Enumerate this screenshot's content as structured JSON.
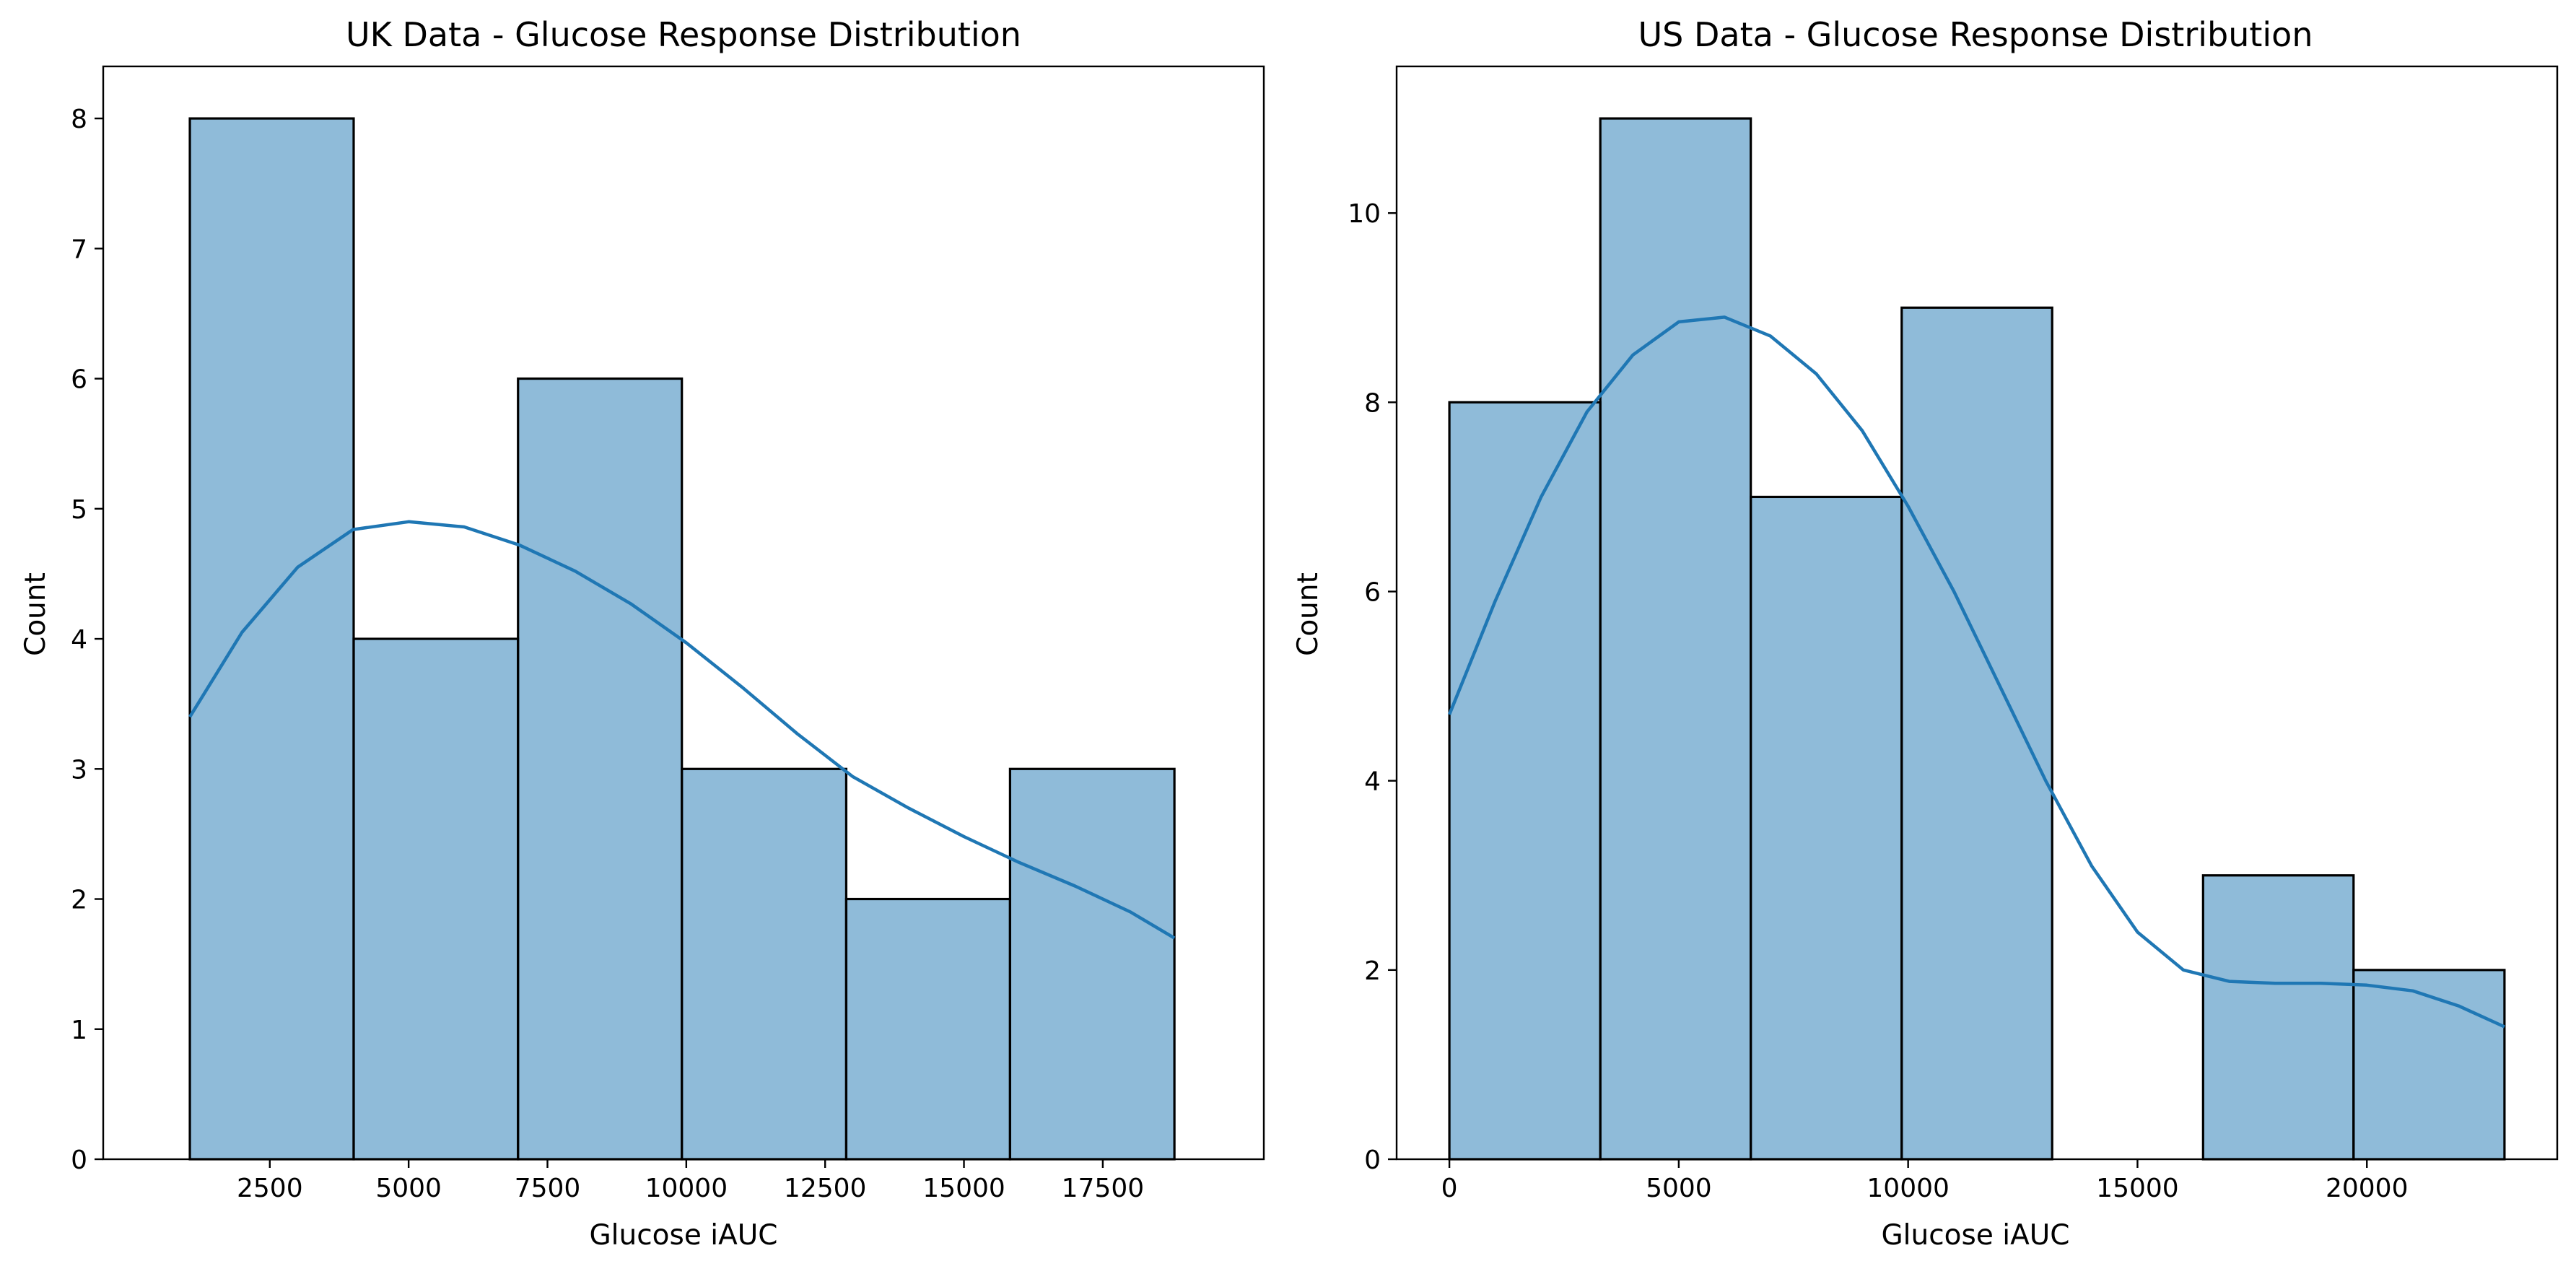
{
  "colors": {
    "series": "#1f77b4"
  },
  "chart_data": [
    {
      "type": "bar",
      "title": "UK Data - Glucose Response Distribution",
      "xlabel": "Glucose iAUC",
      "ylabel": "Count",
      "xlim": [
        -500,
        20400
      ],
      "ylim": [
        0,
        8.4
      ],
      "xticks": [
        2500,
        5000,
        7500,
        10000,
        12500,
        15000,
        17500
      ],
      "yticks": [
        0,
        1,
        2,
        3,
        4,
        5,
        6,
        7,
        8
      ],
      "bins": [
        {
          "x0": 1060,
          "x1": 4010,
          "count": 8
        },
        {
          "x0": 4010,
          "x1": 6970,
          "count": 4
        },
        {
          "x0": 6970,
          "x1": 9920,
          "count": 6
        },
        {
          "x0": 9920,
          "x1": 12880,
          "count": 3
        },
        {
          "x0": 12880,
          "x1": 15830,
          "count": 2
        },
        {
          "x0": 15830,
          "x1": 18790,
          "count": 3
        }
      ],
      "kde": {
        "x": [
          1060,
          2000,
          3000,
          4000,
          5000,
          6000,
          7000,
          8000,
          9000,
          10000,
          11000,
          12000,
          13000,
          14000,
          15000,
          16000,
          17000,
          18000,
          18790
        ],
        "y": [
          3.4,
          4.05,
          4.55,
          4.84,
          4.9,
          4.86,
          4.72,
          4.52,
          4.27,
          3.97,
          3.63,
          3.27,
          2.94,
          2.7,
          2.48,
          2.28,
          2.1,
          1.9,
          1.7
        ]
      }
    },
    {
      "type": "bar",
      "title": "US Data - Glucose Response Distribution",
      "xlabel": "Glucose iAUC",
      "ylabel": "Count",
      "xlim": [
        -1150,
        24150
      ],
      "ylim": [
        0,
        11.55
      ],
      "xticks": [
        0,
        5000,
        10000,
        15000,
        20000
      ],
      "yticks": [
        0,
        2,
        4,
        6,
        8,
        10
      ],
      "bins": [
        {
          "x0": 0,
          "x1": 3290,
          "count": 8
        },
        {
          "x0": 3290,
          "x1": 6570,
          "count": 11
        },
        {
          "x0": 6570,
          "x1": 9860,
          "count": 7
        },
        {
          "x0": 9860,
          "x1": 13140,
          "count": 9
        },
        {
          "x0": 13140,
          "x1": 16430,
          "count": 0
        },
        {
          "x0": 16430,
          "x1": 19710,
          "count": 3
        },
        {
          "x0": 19710,
          "x1": 23000,
          "count": 2
        }
      ],
      "kde": {
        "x": [
          0,
          1000,
          2000,
          3000,
          4000,
          5000,
          6000,
          7000,
          8000,
          9000,
          10000,
          11000,
          12000,
          13000,
          14000,
          15000,
          16000,
          17000,
          18000,
          19000,
          20000,
          21000,
          22000,
          23000
        ],
        "y": [
          4.7,
          5.9,
          7.0,
          7.9,
          8.5,
          8.85,
          8.9,
          8.7,
          8.3,
          7.7,
          6.9,
          6.0,
          5.0,
          4.0,
          3.1,
          2.4,
          2.0,
          1.88,
          1.86,
          1.86,
          1.84,
          1.78,
          1.62,
          1.4
        ]
      }
    }
  ]
}
